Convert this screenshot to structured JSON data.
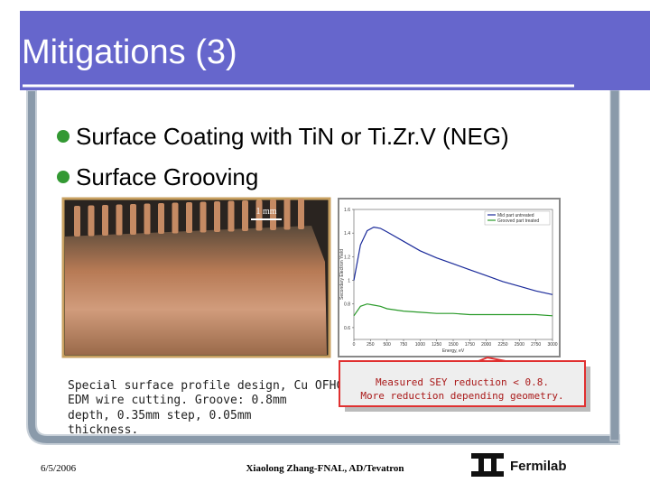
{
  "slide": {
    "title": "Mitigations (3)",
    "bullets": [
      "Surface Coating with TiN or Ti.Zr.V (NEG)",
      "Surface Grooving"
    ],
    "photo_label": "1 mm",
    "caption_lines": [
      "Special surface profile design, Cu OFHC.",
      "EDM wire cutting. Groove: 0.8mm",
      "depth, 0.35mm step, 0.05mm",
      "thickness."
    ],
    "callout_lines": [
      "Measured SEY reduction < 0.8.",
      "More reduction depending geometry."
    ],
    "footer": {
      "date": "6/5/2006",
      "author": "Xiaolong Zhang-FNAL, AD/Tevatron",
      "logo_text": "Fermilab"
    }
  },
  "chart_data": {
    "type": "line",
    "x_label": "Energy, eV",
    "y_label": "Secondary Electron Yield",
    "x": [
      0,
      100,
      200,
      300,
      400,
      500,
      750,
      1000,
      1250,
      1500,
      1750,
      2000,
      2250,
      2500,
      2750,
      3000
    ],
    "series": [
      {
        "name": "Mid part untreated",
        "color": "#1a2a9a",
        "values": [
          1.0,
          1.3,
          1.42,
          1.45,
          1.44,
          1.41,
          1.33,
          1.25,
          1.19,
          1.14,
          1.09,
          1.04,
          0.99,
          0.95,
          0.91,
          0.88
        ]
      },
      {
        "name": "Grooved part treated",
        "color": "#2a9a2a",
        "values": [
          0.7,
          0.78,
          0.8,
          0.79,
          0.78,
          0.76,
          0.74,
          0.73,
          0.72,
          0.72,
          0.71,
          0.71,
          0.71,
          0.71,
          0.71,
          0.7
        ]
      }
    ],
    "xlim": [
      0,
      3000
    ],
    "xticks": [
      0,
      250,
      500,
      750,
      1000,
      1250,
      1500,
      1750,
      2000,
      2250,
      2500,
      2750,
      3000
    ],
    "ylim": [
      0.5,
      1.6
    ],
    "yticks": [
      0.6,
      0.8,
      1.0,
      1.2,
      1.4,
      1.6
    ],
    "legend": "upper right"
  }
}
